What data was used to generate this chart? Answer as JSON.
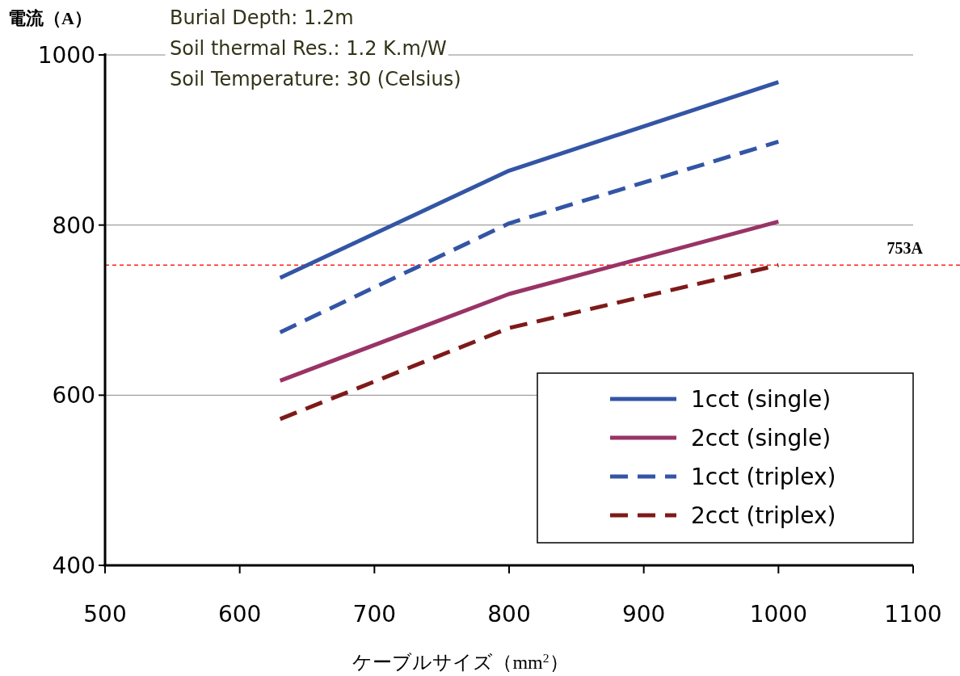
{
  "chart_data": {
    "type": "line",
    "xlabel": "ケーブルサイズ（mm$^{2}$）",
    "ylabel": "電流（A）",
    "annotations": [
      "Burial Depth: 1.2m",
      "Soil thermal Res.: 1.2 K.m/W",
      "Soil Temperature: 30 (Celsius)"
    ],
    "x": [
      630,
      800,
      1000
    ],
    "series": [
      {
        "name": "1cct (single)",
        "color": "#3355a5",
        "line_style": "solid",
        "values": [
          738,
          864,
          968
        ]
      },
      {
        "name": "2cct (single)",
        "color": "#993366",
        "line_style": "solid",
        "values": [
          617,
          719,
          804
        ]
      },
      {
        "name": "1cct (triplex)",
        "color": "#3355a5",
        "line_style": "dashed",
        "values": [
          674,
          802,
          898
        ]
      },
      {
        "name": "2cct (triplex)",
        "color": "#7f1a1a",
        "line_style": "dashed",
        "values": [
          572,
          679,
          753
        ]
      }
    ],
    "xlim": [
      500,
      1100
    ],
    "xticks": [
      500,
      600,
      700,
      800,
      900,
      1000,
      1100
    ],
    "ylim": [
      400,
      1000
    ],
    "yticks": [
      400,
      600,
      800,
      1000
    ],
    "grid": "y",
    "legend": "bottom right",
    "ref_lines": [
      {
        "axis": "y",
        "value": 753,
        "label": "753A",
        "color": "#ff2020",
        "line_style": "dashed"
      }
    ]
  }
}
